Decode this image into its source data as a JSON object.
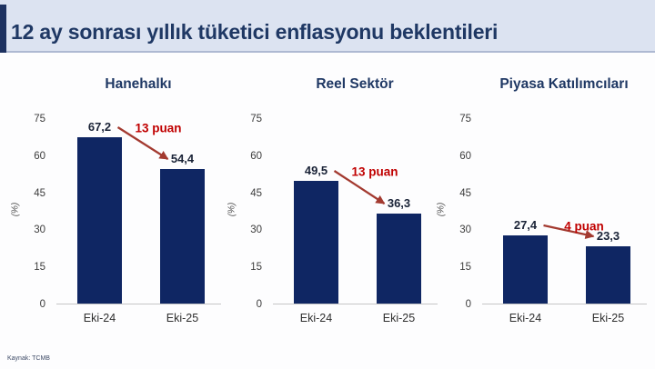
{
  "header": {
    "title": "12 ay sonrası yıllık tüketici enflasyonu beklentileri"
  },
  "footer": {
    "source": "Kaynak: TCMB"
  },
  "colors": {
    "bar_navy": "#0f2663",
    "title_navy": "#1f3864",
    "annotation_red": "#c00000",
    "arrow_red": "#a33a30",
    "header_bg": "#dce3f1"
  },
  "chart_data": [
    {
      "type": "bar",
      "title": "Hanehalkı",
      "categories": [
        "Eki-24",
        "Eki-25"
      ],
      "values": [
        67.2,
        54.4
      ],
      "value_labels": [
        "67,2",
        "54,4"
      ],
      "annotation": "13 puan",
      "ylabel": "(%)",
      "yticks": [
        "0",
        "15",
        "30",
        "45",
        "60",
        "75"
      ],
      "ylim": [
        0,
        75
      ],
      "grid": false,
      "legend": false
    },
    {
      "type": "bar",
      "title": "Reel Sektör",
      "categories": [
        "Eki-24",
        "Eki-25"
      ],
      "values": [
        49.5,
        36.3
      ],
      "value_labels": [
        "49,5",
        "36,3"
      ],
      "annotation": "13 puan",
      "ylabel": "(%)",
      "yticks": [
        "0",
        "15",
        "30",
        "45",
        "60",
        "75"
      ],
      "ylim": [
        0,
        75
      ],
      "grid": false,
      "legend": false
    },
    {
      "type": "bar",
      "title": "Piyasa Katılımcıları",
      "categories": [
        "Eki-24",
        "Eki-25"
      ],
      "values": [
        27.4,
        23.3
      ],
      "value_labels": [
        "27,4",
        "23,3"
      ],
      "annotation": "4 puan",
      "ylabel": "(%)",
      "yticks": [
        "0",
        "15",
        "30",
        "45",
        "60",
        "75"
      ],
      "ylim": [
        0,
        75
      ],
      "grid": false,
      "legend": false
    }
  ]
}
